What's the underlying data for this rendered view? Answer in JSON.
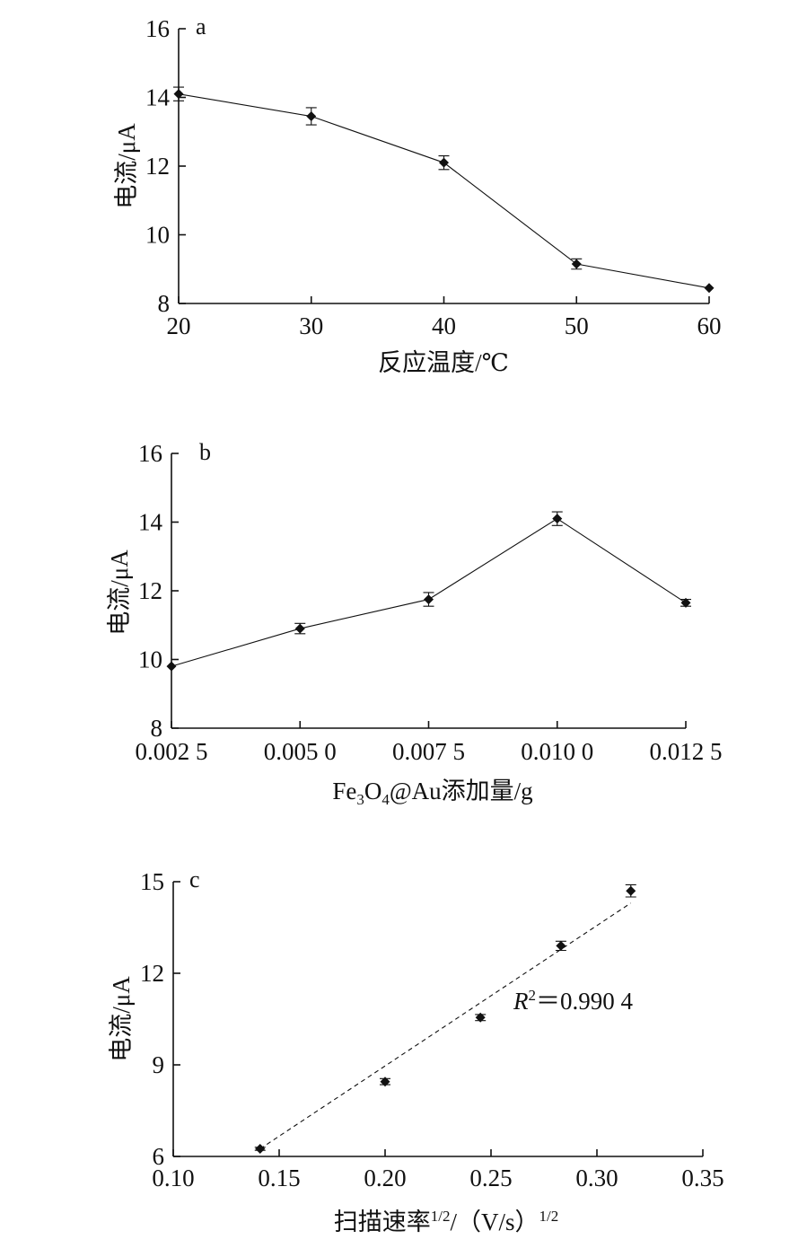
{
  "chart_data": [
    {
      "type": "line",
      "panel": "a",
      "x": [
        20,
        30,
        40,
        50,
        60
      ],
      "y": [
        14.1,
        13.45,
        12.1,
        9.15,
        8.45
      ],
      "error": [
        0.2,
        0.25,
        0.2,
        0.15,
        0.0
      ],
      "xlim": [
        20,
        60
      ],
      "ylim": [
        8,
        16
      ],
      "xticks": [
        "20",
        "30",
        "40",
        "50",
        "60"
      ],
      "yticks": [
        "8",
        "10",
        "12",
        "14",
        "16"
      ],
      "xlabel": "反应温度/℃",
      "ylabel": "电流/μA",
      "grid": false
    },
    {
      "type": "line",
      "panel": "b",
      "x": [
        0.0025,
        0.005,
        0.0075,
        0.01,
        0.0125
      ],
      "y": [
        9.8,
        10.9,
        11.75,
        14.1,
        11.65
      ],
      "error": [
        0.0,
        0.15,
        0.2,
        0.2,
        0.1
      ],
      "xlim": [
        0.0025,
        0.0125
      ],
      "ylim": [
        8,
        16
      ],
      "xticks": [
        "0.002 5",
        "0.005 0",
        "0.007 5",
        "0.010 0",
        "0.012 5"
      ],
      "yticks": [
        "8",
        "10",
        "12",
        "14",
        "16"
      ],
      "xlabel_parts": [
        "Fe",
        "3",
        "O",
        "4",
        "@Au添加量/g"
      ],
      "ylabel": "电流/μA",
      "grid": false
    },
    {
      "type": "scatter",
      "panel": "c",
      "x": [
        0.141,
        0.2,
        0.245,
        0.283,
        0.316
      ],
      "y": [
        6.25,
        8.45,
        10.55,
        12.9,
        14.7
      ],
      "error": [
        0.05,
        0.1,
        0.1,
        0.15,
        0.2
      ],
      "fit": {
        "x": [
          0.141,
          0.316
        ],
        "y": [
          6.25,
          14.3
        ],
        "style": "dashed"
      },
      "r2_parts": [
        "R",
        "2",
        "＝0.990 4"
      ],
      "xlim": [
        0.1,
        0.35
      ],
      "ylim": [
        6,
        15
      ],
      "xticks": [
        "0.10",
        "0.15",
        "0.20",
        "0.25",
        "0.30",
        "0.35"
      ],
      "yticks": [
        "6",
        "9",
        "12",
        "15"
      ],
      "xlabel_parts": [
        "扫描速率",
        "1/2",
        "/（V/s）",
        "1/2"
      ],
      "ylabel": "电流/μA",
      "grid": false
    }
  ]
}
